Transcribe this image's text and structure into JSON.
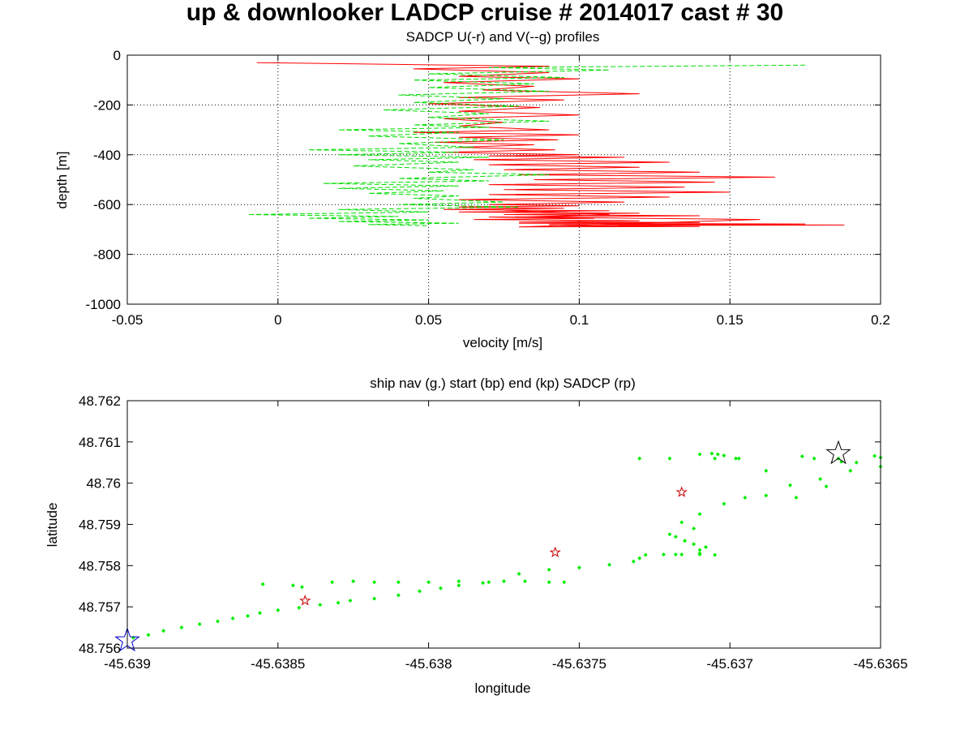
{
  "figure_title": "up & downlooker LADCP cruise # 2014017 cast # 30",
  "chart_data": [
    {
      "type": "line",
      "title": "SADCP U(-r) and V(--g) profiles",
      "xlabel": "velocity [m/s]",
      "ylabel": "depth [m]",
      "xlim": [
        -0.05,
        0.2
      ],
      "ylim": [
        -1000,
        0
      ],
      "xticks": [
        "-0.05",
        "0",
        "0.05",
        "0.1",
        "0.15",
        "0.2"
      ],
      "yticks": [
        "0",
        "-200",
        "-400",
        "-600",
        "-800",
        "-1000"
      ],
      "grid": true,
      "series": [
        {
          "color": "#ff0000",
          "style": "solid",
          "x": [
            -0.007,
            0.09,
            0.045,
            0.09,
            0.06,
            0.1,
            0.055,
            0.085,
            0.068,
            0.12,
            0.06,
            0.095,
            0.05,
            0.087,
            0.06,
            0.1,
            0.055,
            0.075,
            0.06,
            0.09,
            0.045,
            0.1,
            0.06,
            0.093,
            0.052,
            0.085,
            0.06,
            0.092,
            0.055,
            0.1,
            0.07,
            0.115,
            0.065,
            0.13,
            0.07,
            0.12,
            0.075,
            0.14,
            0.08,
            0.165,
            0.085,
            0.145,
            0.07,
            0.135,
            0.075,
            0.15,
            0.07,
            0.13,
            0.06,
            0.115,
            0.07,
            0.1,
            0.06,
            0.095,
            0.055,
            0.11,
            0.06,
            0.12,
            0.075,
            0.14,
            0.07,
            0.105,
            0.065,
            0.12,
            0.08,
            0.14,
            0.08,
            0.175,
            0.09,
            0.188,
            0.09,
            0.14,
            0.08,
            0.16,
            0.08,
            0.11,
            0.07
          ],
          "y": [
            -30,
            -45,
            -55,
            -70,
            -85,
            -95,
            -110,
            -125,
            -140,
            -155,
            -170,
            -180,
            -195,
            -210,
            -225,
            -240,
            -255,
            -270,
            -285,
            -300,
            -310,
            -320,
            -330,
            -340,
            -350,
            -360,
            -370,
            -380,
            -390,
            -400,
            -405,
            -410,
            -420,
            -430,
            -440,
            -450,
            -460,
            -470,
            -480,
            -490,
            -500,
            -510,
            -520,
            -530,
            -540,
            -550,
            -560,
            -570,
            -580,
            -590,
            -600,
            -605,
            -610,
            -615,
            -620,
            -625,
            -630,
            -635,
            -640,
            -645,
            -650,
            -655,
            -660,
            -665,
            -670,
            -672,
            -675,
            -678,
            -680,
            -682,
            -685,
            -688,
            -690,
            -660,
            -650,
            -640,
            -620
          ]
        },
        {
          "color": "#00dd00",
          "style": "dashed",
          "x": [
            0.175,
            0.07,
            0.11,
            0.05,
            0.095,
            0.045,
            0.085,
            0.05,
            0.09,
            0.04,
            0.075,
            0.045,
            0.08,
            0.035,
            0.07,
            0.05,
            0.09,
            0.045,
            0.07,
            0.02,
            0.06,
            0.03,
            0.075,
            0.04,
            0.065,
            0.01,
            0.06,
            0.02,
            0.07,
            0.03,
            0.06,
            0.025,
            0.065,
            0.05,
            0.09,
            0.04,
            0.07,
            0.015,
            0.06,
            0.02,
            0.055,
            0.03,
            0.06,
            0.045,
            0.075,
            0.04,
            0.08,
            0.02,
            0.05,
            -0.01,
            0.04,
            0.01,
            0.05,
            0.02,
            0.06,
            0.03,
            0.05
          ],
          "y": [
            -40,
            -50,
            -60,
            -75,
            -90,
            -100,
            -115,
            -130,
            -145,
            -160,
            -175,
            -190,
            -205,
            -220,
            -235,
            -250,
            -265,
            -280,
            -290,
            -300,
            -310,
            -325,
            -340,
            -355,
            -370,
            -380,
            -390,
            -400,
            -410,
            -420,
            -430,
            -445,
            -460,
            -470,
            -480,
            -495,
            -505,
            -515,
            -525,
            -535,
            -545,
            -555,
            -565,
            -575,
            -590,
            -600,
            -610,
            -620,
            -630,
            -640,
            -648,
            -655,
            -662,
            -668,
            -675,
            -680,
            -685
          ]
        }
      ]
    },
    {
      "type": "scatter",
      "title": "ship nav (g.) start (bp) end (kp) SADCP (rp)",
      "xlabel": "longitude",
      "ylabel": "latitude",
      "xlim": [
        -45.639,
        -45.6365
      ],
      "ylim": [
        48.756,
        48.762
      ],
      "xticks": [
        "-45.639",
        "-45.6385",
        "-45.638",
        "-45.6375",
        "-45.637",
        "-45.6365"
      ],
      "yticks": [
        "48.756",
        "48.757",
        "48.758",
        "48.759",
        "48.76",
        "48.761",
        "48.762"
      ],
      "grid": false,
      "nav_points": {
        "color": "#00ee00",
        "x": [
          -45.63898,
          -45.63893,
          -45.63888,
          -45.63882,
          -45.63876,
          -45.6387,
          -45.63865,
          -45.6386,
          -45.63856,
          -45.6385,
          -45.63843,
          -45.63836,
          -45.6383,
          -45.63826,
          -45.63818,
          -45.6381,
          -45.63803,
          -45.63796,
          -45.6379,
          -45.63782,
          -45.63775,
          -45.63768,
          -45.6376,
          -45.63755,
          -45.63845,
          -45.63855,
          -45.63842,
          -45.63832,
          -45.63825,
          -45.63818,
          -45.6381,
          -45.638,
          -45.6379,
          -45.6378,
          -45.6377,
          -45.6376,
          -45.6375,
          -45.6374,
          -45.63732,
          -45.6373,
          -45.63728,
          -45.63722,
          -45.63718,
          -45.63716,
          -45.6371,
          -45.63705,
          -45.6371,
          -45.6371,
          -45.63708,
          -45.63712,
          -45.63715,
          -45.63718,
          -45.6372,
          -45.63712,
          -45.63716,
          -45.6371,
          -45.63702,
          -45.63695,
          -45.63688,
          -45.6368,
          -45.6367,
          -45.6366,
          -45.6365,
          -45.6365,
          -45.63668,
          -45.63678,
          -45.63688,
          -45.63698,
          -45.63702,
          -45.63706,
          -45.63705,
          -45.6371,
          -45.6372,
          -45.6373,
          -45.63704,
          -45.63697,
          -45.63676,
          -45.63664,
          -45.63658,
          -45.63652,
          -45.63663,
          -45.63672
        ],
        "y": [
          48.75625,
          48.75632,
          48.75642,
          48.7565,
          48.75658,
          48.75665,
          48.75672,
          48.75678,
          48.75685,
          48.75692,
          48.75698,
          48.75705,
          48.7571,
          48.75715,
          48.7572,
          48.75728,
          48.75738,
          48.75745,
          48.75752,
          48.75758,
          48.75762,
          48.75762,
          48.7576,
          48.7576,
          48.75752,
          48.75755,
          48.75748,
          48.7576,
          48.75762,
          48.7576,
          48.7576,
          48.7576,
          48.75762,
          48.7576,
          48.7578,
          48.7579,
          48.75795,
          48.75802,
          48.7581,
          48.75818,
          48.75826,
          48.75827,
          48.75827,
          48.75827,
          48.75827,
          48.75826,
          48.7583,
          48.75838,
          48.75845,
          48.75852,
          48.7586,
          48.7587,
          48.75876,
          48.7589,
          48.75905,
          48.75925,
          48.7595,
          48.75965,
          48.7597,
          48.75995,
          48.7601,
          48.7603,
          48.7604,
          48.76062,
          48.75992,
          48.75965,
          48.7603,
          48.7606,
          48.76067,
          48.76072,
          48.7606,
          48.7607,
          48.7606,
          48.7606,
          48.7607,
          48.7606,
          48.76065,
          48.7606,
          48.7605,
          48.76066,
          48.76052,
          48.7606
        ]
      },
      "start_marker": {
        "x": -45.639,
        "y": 48.75618,
        "color": "#0000cc"
      },
      "end_marker": {
        "x": -45.63664,
        "y": 48.76072,
        "color": "#000000"
      },
      "sadcp_points": {
        "color": "#cc0000",
        "x": [
          -45.63841,
          -45.63758,
          -45.63716
        ],
        "y": [
          48.75715,
          48.75832,
          48.75978
        ]
      }
    }
  ]
}
